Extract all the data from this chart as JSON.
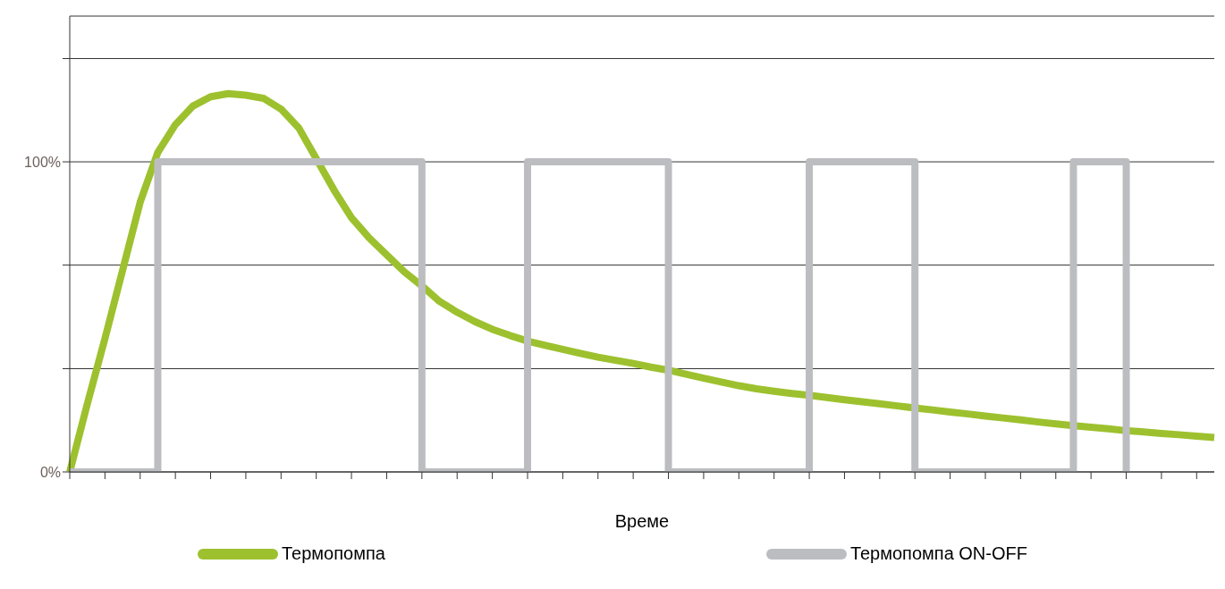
{
  "chart_data": {
    "type": "line",
    "xlabel": "Време",
    "categories": [
      null,
      null,
      null,
      null,
      null,
      null,
      null,
      null,
      null,
      null,
      null,
      null,
      null,
      null,
      null,
      null,
      null,
      null,
      null,
      null,
      null,
      null,
      null,
      null,
      null,
      null,
      null,
      null,
      null,
      null,
      null,
      null,
      null,
      null,
      null,
      null,
      null,
      null,
      null,
      null,
      null,
      null,
      null,
      null,
      null,
      null,
      null,
      null,
      null,
      null,
      null,
      null,
      null,
      null,
      null,
      null,
      null,
      null,
      null,
      null,
      null,
      null,
      null,
      null,
      null,
      null
    ],
    "series": [
      {
        "name": "Термопомпа",
        "color": "#9dc12e",
        "values": [
          0,
          22,
          43,
          65,
          87,
          103,
          112,
          118,
          121,
          122,
          121.5,
          120.5,
          117,
          111,
          101,
          91,
          82,
          75.5,
          70,
          64.5,
          60,
          55,
          51.5,
          48.5,
          46,
          44,
          42.2,
          40.8,
          39.5,
          38.2,
          37,
          36,
          35,
          33.8,
          32.8,
          31.5,
          30.2,
          29,
          27.8,
          26.8,
          26,
          25.3,
          24.7,
          24,
          23.3,
          22.6,
          22,
          21.3,
          20.6,
          20,
          19.3,
          18.7,
          18,
          17.4,
          16.8,
          16.1,
          15.5,
          14.9,
          14.4,
          13.9,
          13.3,
          12.9,
          12.4,
          12,
          11.5,
          11.1
        ]
      },
      {
        "name": "Термопомпа ON-OFF",
        "color": "#bcbdc1",
        "type": "step",
        "values": [
          0,
          0,
          0,
          0,
          0,
          100,
          100,
          100,
          100,
          100,
          100,
          100,
          100,
          100,
          100,
          100,
          100,
          100,
          100,
          100,
          0,
          0,
          0,
          0,
          0,
          0,
          100,
          100,
          100,
          100,
          100,
          100,
          100,
          100,
          0,
          0,
          0,
          0,
          0,
          0,
          0,
          0,
          100,
          100,
          100,
          100,
          100,
          100,
          0,
          0,
          0,
          0,
          0,
          0,
          0,
          0,
          0,
          100,
          100,
          100,
          0,
          null,
          null,
          null,
          null,
          null
        ]
      }
    ],
    "ylim": [
      0,
      147
    ],
    "yticks": [
      {
        "value": 0,
        "label": "0%"
      },
      {
        "value": 33.3,
        "label": null
      },
      {
        "value": 66.7,
        "label": null
      },
      {
        "value": 100,
        "label": "100%"
      },
      {
        "value": 133.3,
        "label": null
      }
    ],
    "grid": "y",
    "legend": "bottom",
    "marker": "none",
    "line_style": "solid"
  }
}
